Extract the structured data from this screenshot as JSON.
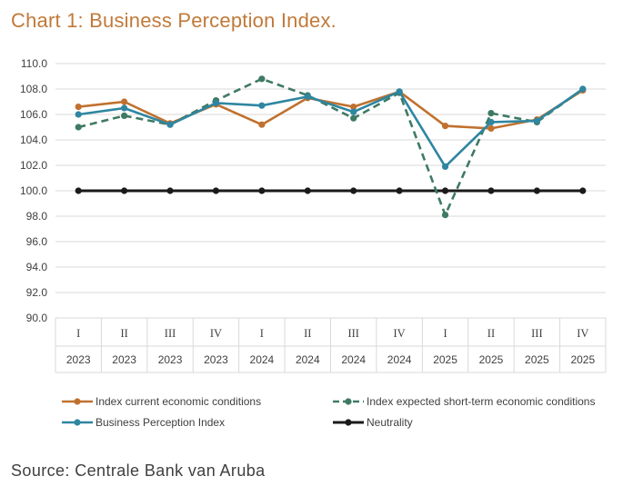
{
  "chart_data": {
    "type": "line",
    "title": "Chart 1: Business Perception Index.",
    "source": "Source: Centrale Bank van Aruba",
    "categories": [
      {
        "quarter": "I",
        "year": "2023"
      },
      {
        "quarter": "II",
        "year": "2023"
      },
      {
        "quarter": "III",
        "year": "2023"
      },
      {
        "quarter": "IV",
        "year": "2023"
      },
      {
        "quarter": "I",
        "year": "2024"
      },
      {
        "quarter": "II",
        "year": "2024"
      },
      {
        "quarter": "III",
        "year": "2024"
      },
      {
        "quarter": "IV",
        "year": "2024"
      },
      {
        "quarter": "I",
        "year": "2025"
      },
      {
        "quarter": "II",
        "year": "2025"
      },
      {
        "quarter": "III",
        "year": "2025"
      },
      {
        "quarter": "IV",
        "year": "2025"
      }
    ],
    "ylim": [
      90.0,
      110.0
    ],
    "yticks": [
      "90.0",
      "92.0",
      "94.0",
      "96.0",
      "98.0",
      "100.0",
      "102.0",
      "104.0",
      "106.0",
      "108.0",
      "110.0"
    ],
    "grid": true,
    "legend_position": "bottom",
    "series": [
      {
        "name": "Index current economic conditions",
        "color": "#c0712f",
        "dashed": false,
        "values": [
          106.6,
          107.0,
          105.3,
          106.8,
          105.2,
          107.3,
          106.6,
          107.8,
          105.1,
          104.9,
          105.6,
          107.9
        ]
      },
      {
        "name": "Index expected short-term economic conditions",
        "color": "#3f7a63",
        "dashed": true,
        "values": [
          105.0,
          105.9,
          105.2,
          107.1,
          108.8,
          107.5,
          105.7,
          107.7,
          98.1,
          106.1,
          105.4,
          108.0
        ]
      },
      {
        "name": "Business Perception Index",
        "color": "#2e86a1",
        "dashed": false,
        "values": [
          106.0,
          106.5,
          105.2,
          106.9,
          106.7,
          107.4,
          106.2,
          107.8,
          101.9,
          105.4,
          105.5,
          108.0
        ]
      },
      {
        "name": "Neutrality",
        "color": "#1a1a1a",
        "dashed": false,
        "values": [
          100.0,
          100.0,
          100.0,
          100.0,
          100.0,
          100.0,
          100.0,
          100.0,
          100.0,
          100.0,
          100.0,
          100.0
        ]
      }
    ]
  }
}
